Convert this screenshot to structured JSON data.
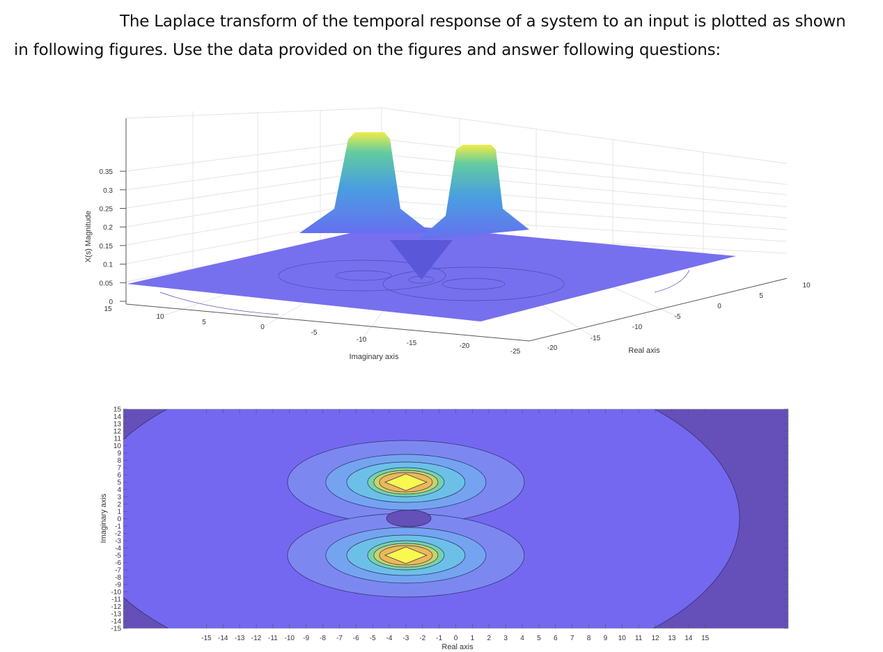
{
  "question": {
    "line1": "The Laplace transform of the temporal response of a system to an input is plotted as shown",
    "line2": "in following figures. Use the data provided on the figures and answer following questions:"
  },
  "chart_data": [
    {
      "type": "surface",
      "zlabel": "X(s) Magnitude",
      "xlabel": "Imaginary axis",
      "ylabel": "Real axis",
      "z_ticks": [
        "0",
        "0.05",
        "0.1",
        "0.15",
        "0.2",
        "0.25",
        "0.3",
        "0.35"
      ],
      "imag_ticks": [
        "15",
        "10",
        "5",
        "0",
        "-5",
        "-10",
        "-15",
        "-20",
        "-25"
      ],
      "real_ticks": [
        "-20",
        "-15",
        "-10",
        "-5",
        "0",
        "5",
        "10"
      ],
      "zlim": [
        0,
        0.35
      ],
      "peaks": [
        {
          "real": -3,
          "imag": 5
        },
        {
          "real": -3,
          "imag": -5
        }
      ],
      "colormap": [
        "#5b5bf0",
        "#4aa0e0",
        "#60d0a0",
        "#f8f040"
      ],
      "grid": true
    },
    {
      "type": "contour",
      "xlabel": "Real axis",
      "ylabel": "Imaginary axis",
      "x_ticks": [
        "-15",
        "-14",
        "-13",
        "-12",
        "-11",
        "-10",
        "-9",
        "-8",
        "-7",
        "-6",
        "-5",
        "-4",
        "-3",
        "-2",
        "-1",
        "0",
        "1",
        "2",
        "3",
        "4",
        "5",
        "6",
        "7",
        "8",
        "9",
        "10",
        "11",
        "12",
        "13",
        "14",
        "15"
      ],
      "y_ticks": [
        "15",
        "14",
        "13",
        "12",
        "11",
        "10",
        "9",
        "8",
        "7",
        "6",
        "5",
        "4",
        "3",
        "2",
        "1",
        "0",
        "-1",
        "-2",
        "-3",
        "-4",
        "-5",
        "-6",
        "-7",
        "-8",
        "-9",
        "-10",
        "-11",
        "-12",
        "-13",
        "-14",
        "-15"
      ],
      "xlim": [
        -20,
        20
      ],
      "ylim": [
        -15,
        15
      ],
      "peaks": [
        {
          "real": -3,
          "imag": 5
        },
        {
          "real": -3,
          "imag": -5
        }
      ],
      "colors": {
        "background": "#7468f0",
        "outer": "#6450b8",
        "level1": "#7c88f0",
        "level2": "#74a4f0",
        "level3": "#6cc0e8",
        "level4": "#74d4a8",
        "level5": "#c8d468",
        "level6": "#eeb858",
        "peak": "#f8f850"
      }
    }
  ]
}
